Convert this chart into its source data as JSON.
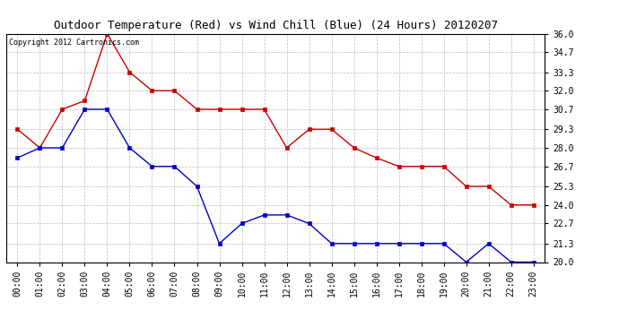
{
  "title": "Outdoor Temperature (Red) vs Wind Chill (Blue) (24 Hours) 20120207",
  "copyright_text": "Copyright 2012 Cartronics.com",
  "x_labels": [
    "00:00",
    "01:00",
    "02:00",
    "03:00",
    "04:00",
    "05:00",
    "06:00",
    "07:00",
    "08:00",
    "09:00",
    "10:00",
    "11:00",
    "12:00",
    "13:00",
    "14:00",
    "15:00",
    "16:00",
    "17:00",
    "18:00",
    "19:00",
    "20:00",
    "21:00",
    "22:00",
    "23:00"
  ],
  "red_temp": [
    29.3,
    28.0,
    30.7,
    31.3,
    36.0,
    33.3,
    32.0,
    32.0,
    30.7,
    30.7,
    30.7,
    30.7,
    28.0,
    29.3,
    29.3,
    28.0,
    27.3,
    26.7,
    26.7,
    26.7,
    25.3,
    25.3,
    24.0,
    24.0
  ],
  "blue_chill": [
    27.3,
    28.0,
    28.0,
    30.7,
    30.7,
    28.0,
    26.7,
    26.7,
    25.3,
    21.3,
    22.7,
    23.3,
    23.3,
    22.7,
    21.3,
    21.3,
    21.3,
    21.3,
    21.3,
    21.3,
    20.0,
    21.3,
    20.0,
    20.0
  ],
  "ylim_min": 20.0,
  "ylim_max": 36.0,
  "y_ticks": [
    20.0,
    21.3,
    22.7,
    24.0,
    25.3,
    26.7,
    28.0,
    29.3,
    30.7,
    32.0,
    33.3,
    34.7,
    36.0
  ],
  "red_color": "#cc0000",
  "blue_color": "#0000cc",
  "bg_color": "#ffffff",
  "grid_color": "#bbbbbb",
  "title_fontsize": 9,
  "copyright_fontsize": 6,
  "tick_fontsize": 7,
  "ytick_fontsize": 7,
  "linewidth": 1.0,
  "markersize": 2.5
}
